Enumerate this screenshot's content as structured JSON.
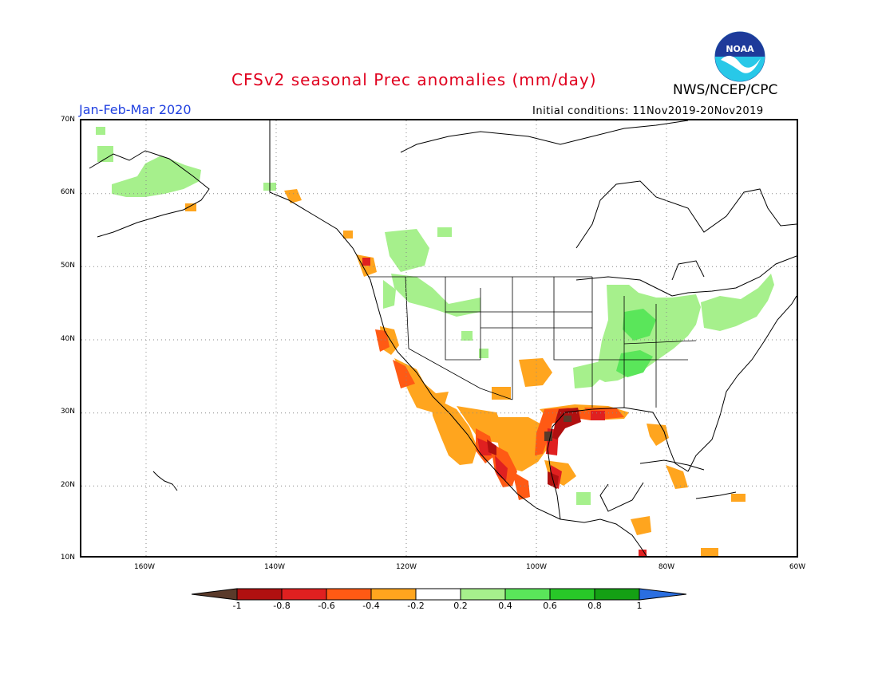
{
  "header": {
    "title": "CFSv2 seasonal Prec anomalies (mm/day)",
    "agency": "NWS/NCEP/CPC",
    "season": "Jan-Feb-Mar 2020",
    "initial_conditions": "Initial conditions: 11Nov2019-20Nov2019",
    "logo_text": "NOAA"
  },
  "map": {
    "projection": "lat-lon",
    "lat_labels": [
      "70N",
      "60N",
      "50N",
      "40N",
      "30N",
      "20N",
      "10N"
    ],
    "lon_labels": [
      "160W",
      "140W",
      "120W",
      "100W",
      "80W",
      "60W"
    ],
    "region": "North America",
    "grid": "dotted"
  },
  "legend": {
    "ticks": [
      "-1",
      "-0.8",
      "-0.6",
      "-0.4",
      "-0.2",
      "0.2",
      "0.4",
      "0.6",
      "0.8",
      "1"
    ],
    "colors": {
      "lt_-1": "#5a3a2a",
      "-1_-0.8": "#b01010",
      "-0.8_-0.6": "#e02020",
      "-0.6_-0.4": "#ff5a14",
      "-0.4_-0.2": "#ffa51e",
      "-0.2_0.2": "#ffffff",
      "0.2_0.4": "#a6f08c",
      "0.4_0.6": "#5ae65a",
      "0.6_0.8": "#28c828",
      "0.8_1": "#14a014",
      "gt_1": "#2a6ee0"
    }
  }
}
